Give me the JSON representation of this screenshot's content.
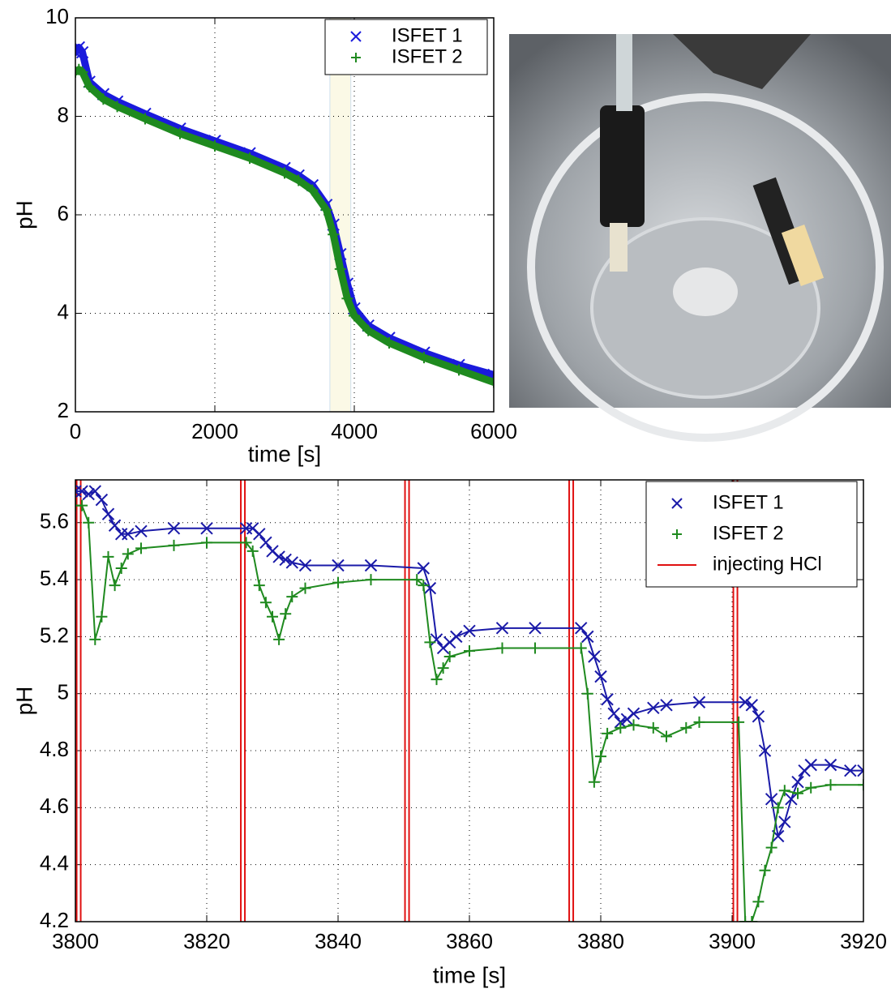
{
  "chart_data": [
    {
      "type": "scatter",
      "xlabel": "time [s]",
      "ylabel": "pH",
      "xlim": [
        0,
        6000
      ],
      "xticks": [
        0,
        2000,
        4000,
        6000
      ],
      "ylim": [
        2,
        10
      ],
      "yticks": [
        2,
        4,
        6,
        8,
        10
      ],
      "grid": true,
      "legend": "upper right",
      "highlight": {
        "x": [
          3650,
          3950
        ],
        "color": "#fbf9e6"
      },
      "series": [
        {
          "name": "ISFET 1",
          "color": "#1a1adc",
          "marker": "x",
          "line_width": 9,
          "x": [
            0,
            50,
            100,
            200,
            400,
            600,
            1000,
            1500,
            2000,
            2500,
            3000,
            3200,
            3400,
            3600,
            3700,
            3800,
            3900,
            4000,
            4200,
            4500,
            5000,
            5500,
            6000
          ],
          "values": [
            9.3,
            9.4,
            9.3,
            8.7,
            8.45,
            8.3,
            8.05,
            7.75,
            7.5,
            7.25,
            6.95,
            6.8,
            6.6,
            6.2,
            5.8,
            5.2,
            4.6,
            4.1,
            3.75,
            3.5,
            3.2,
            2.95,
            2.75
          ]
        },
        {
          "name": "ISFET 2",
          "color": "#1f8a1f",
          "marker": "+",
          "line_width": 9,
          "x": [
            0,
            50,
            100,
            200,
            400,
            600,
            1000,
            1500,
            2000,
            2500,
            3000,
            3200,
            3400,
            3600,
            3700,
            3800,
            3900,
            4000,
            4200,
            4500,
            5000,
            5500,
            6000
          ],
          "values": [
            8.9,
            8.95,
            8.9,
            8.6,
            8.35,
            8.2,
            7.95,
            7.65,
            7.4,
            7.15,
            6.85,
            6.7,
            6.5,
            6.1,
            5.6,
            4.9,
            4.3,
            3.95,
            3.65,
            3.4,
            3.1,
            2.85,
            2.6
          ]
        }
      ]
    },
    {
      "type": "line",
      "xlabel": "time [s]",
      "ylabel": "pH",
      "xlim": [
        3800,
        3920
      ],
      "xticks": [
        3800,
        3820,
        3840,
        3860,
        3880,
        3900,
        3920
      ],
      "ylim": [
        4.2,
        5.75
      ],
      "yticks": [
        4.2,
        4.4,
        4.6,
        4.8,
        5,
        5.2,
        5.4,
        5.6
      ],
      "grid": true,
      "legend": "upper right",
      "series": [
        {
          "name": "ISFET 1",
          "color": "#1a1aa8",
          "marker": "x",
          "line_width": 2,
          "x": [
            3800,
            3801,
            3802,
            3803,
            3804,
            3805,
            3806,
            3807,
            3808,
            3810,
            3815,
            3820,
            3826,
            3827,
            3828,
            3829,
            3830,
            3831,
            3832,
            3833,
            3835,
            3840,
            3845,
            3853,
            3854,
            3855,
            3856,
            3857,
            3858,
            3860,
            3865,
            3870,
            3877,
            3878,
            3879,
            3880,
            3881,
            3882,
            3883,
            3884,
            3885,
            3888,
            3890,
            3895,
            3902,
            3903,
            3904,
            3905,
            3906,
            3907,
            3908,
            3909,
            3910,
            3911,
            3912,
            3915,
            3918,
            3920
          ],
          "values": [
            5.71,
            5.71,
            5.7,
            5.71,
            5.68,
            5.63,
            5.59,
            5.56,
            5.56,
            5.57,
            5.58,
            5.58,
            5.58,
            5.58,
            5.56,
            5.53,
            5.5,
            5.48,
            5.47,
            5.46,
            5.45,
            5.45,
            5.45,
            5.44,
            5.37,
            5.19,
            5.16,
            5.18,
            5.2,
            5.22,
            5.23,
            5.23,
            5.23,
            5.2,
            5.13,
            5.06,
            4.98,
            4.93,
            4.9,
            4.91,
            4.93,
            4.95,
            4.96,
            4.97,
            4.97,
            4.96,
            4.92,
            4.8,
            4.63,
            4.5,
            4.55,
            4.63,
            4.69,
            4.73,
            4.75,
            4.75,
            4.73,
            4.73
          ]
        },
        {
          "name": "ISFET 2",
          "color": "#1f8a1f",
          "marker": "+",
          "line_width": 2,
          "x": [
            3800,
            3801,
            3802,
            3803,
            3804,
            3805,
            3806,
            3807,
            3808,
            3810,
            3815,
            3820,
            3826,
            3827,
            3828,
            3829,
            3830,
            3831,
            3832,
            3833,
            3835,
            3840,
            3845,
            3852,
            3853,
            3854,
            3855,
            3856,
            3857,
            3860,
            3865,
            3870,
            3877,
            3878,
            3879,
            3880,
            3881,
            3883,
            3885,
            3888,
            3890,
            3893,
            3895,
            3901,
            3902,
            3903,
            3904,
            3905,
            3906,
            3907,
            3908,
            3910,
            3912,
            3915,
            3920
          ],
          "values": [
            5.66,
            5.66,
            5.6,
            5.19,
            5.27,
            5.48,
            5.38,
            5.44,
            5.49,
            5.51,
            5.52,
            5.53,
            5.53,
            5.5,
            5.38,
            5.32,
            5.27,
            5.19,
            5.28,
            5.34,
            5.37,
            5.39,
            5.4,
            5.4,
            5.38,
            5.18,
            5.05,
            5.09,
            5.13,
            5.15,
            5.16,
            5.16,
            5.16,
            5.0,
            4.69,
            4.78,
            4.86,
            4.88,
            4.89,
            4.88,
            4.85,
            4.88,
            4.9,
            4.9,
            4.2,
            4.2,
            4.27,
            4.38,
            4.46,
            4.6,
            4.66,
            4.65,
            4.67,
            4.68,
            4.68
          ]
        }
      ],
      "vlines": {
        "name": "injecting HCl",
        "color": "#e01010",
        "x": [
          3800.5,
          3825.5,
          3850.5,
          3875.5,
          3900.5
        ]
      }
    }
  ]
}
